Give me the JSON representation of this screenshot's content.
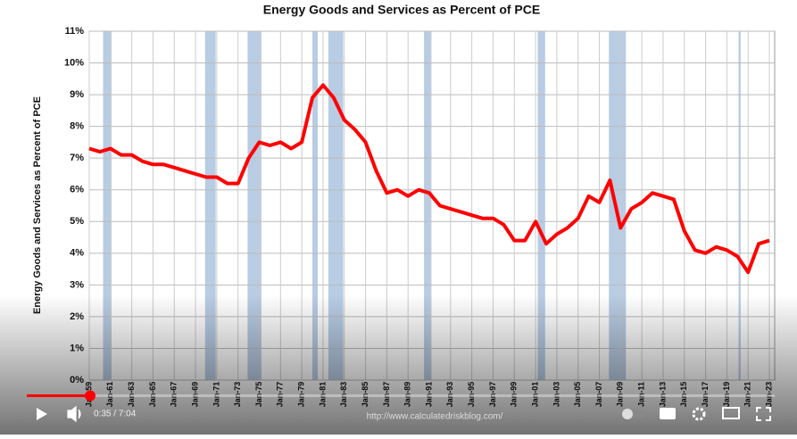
{
  "chart_data": {
    "type": "line",
    "title": "Energy Goods and Services as Percent of PCE",
    "y_label": "Energy Goods and Services as Percent of PCE",
    "source": "http://www.calculatedriskblog.com/",
    "color": "#ff0000",
    "recession_color": "#b8cce4",
    "grid": true,
    "x": [
      1959,
      1960,
      1961,
      1962,
      1963,
      1964,
      1965,
      1966,
      1967,
      1968,
      1969,
      1970,
      1971,
      1972,
      1973,
      1974,
      1975,
      1976,
      1977,
      1978,
      1979,
      1980,
      1981,
      1982,
      1983,
      1984,
      1985,
      1986,
      1987,
      1988,
      1989,
      1990,
      1991,
      1992,
      1993,
      1994,
      1995,
      1996,
      1997,
      1998,
      1999,
      2000,
      2001,
      2002,
      2003,
      2004,
      2005,
      2006,
      2007,
      2008,
      2009,
      2010,
      2011,
      2012,
      2013,
      2014,
      2015,
      2016,
      2017,
      2018,
      2019,
      2020,
      2021,
      2022,
      2023
    ],
    "values": [
      7.3,
      7.2,
      7.3,
      7.1,
      7.1,
      6.9,
      6.8,
      6.8,
      6.7,
      6.6,
      6.5,
      6.4,
      6.4,
      6.2,
      6.2,
      7.0,
      7.5,
      7.4,
      7.5,
      7.3,
      7.5,
      8.9,
      9.3,
      8.9,
      8.2,
      7.9,
      7.5,
      6.6,
      5.9,
      6.0,
      5.8,
      6.0,
      5.9,
      5.5,
      5.4,
      5.3,
      5.2,
      5.1,
      5.1,
      4.9,
      4.4,
      4.4,
      5.0,
      4.3,
      4.6,
      4.8,
      5.1,
      5.8,
      5.6,
      6.3,
      4.8,
      5.4,
      5.6,
      5.9,
      5.8,
      5.7,
      4.7,
      4.1,
      4.0,
      4.2,
      4.1,
      3.9,
      3.4,
      4.3,
      4.4
    ],
    "recessions": [
      [
        1960.3,
        1961.1
      ],
      [
        1969.9,
        1970.9
      ],
      [
        1973.9,
        1975.2
      ],
      [
        1980.0,
        1980.5
      ],
      [
        1981.5,
        1982.9
      ],
      [
        1990.5,
        1991.2
      ],
      [
        2001.2,
        2001.9
      ],
      [
        2007.9,
        2009.5
      ],
      [
        2020.1,
        2020.3
      ]
    ],
    "xlim": [
      1959,
      2023.5
    ],
    "ylim": [
      0,
      11
    ],
    "xticks": [
      {
        "value": 1959,
        "label": "Jan-59"
      },
      {
        "value": 1961,
        "label": "Jan-61"
      },
      {
        "value": 1963,
        "label": "Jan-63"
      },
      {
        "value": 1965,
        "label": "Jan-65"
      },
      {
        "value": 1967,
        "label": "Jan-67"
      },
      {
        "value": 1969,
        "label": "Jan-69"
      },
      {
        "value": 1971,
        "label": "Jan-71"
      },
      {
        "value": 1973,
        "label": "Jan-73"
      },
      {
        "value": 1975,
        "label": "Jan-75"
      },
      {
        "value": 1977,
        "label": "Jan-77"
      },
      {
        "value": 1979,
        "label": "Jan-79"
      },
      {
        "value": 1981,
        "label": "Jan-81"
      },
      {
        "value": 1983,
        "label": "Jan-83"
      },
      {
        "value": 1985,
        "label": "Jan-85"
      },
      {
        "value": 1987,
        "label": "Jan-87"
      },
      {
        "value": 1989,
        "label": "Jan-89"
      },
      {
        "value": 1991,
        "label": "Jan-91"
      },
      {
        "value": 1993,
        "label": "Jan-93"
      },
      {
        "value": 1995,
        "label": "Jan-95"
      },
      {
        "value": 1997,
        "label": "Jan-97"
      },
      {
        "value": 1999,
        "label": "Jan-99"
      },
      {
        "value": 2001,
        "label": "Jan-01"
      },
      {
        "value": 2003,
        "label": "Jan-03"
      },
      {
        "value": 2005,
        "label": "Jan-05"
      },
      {
        "value": 2007,
        "label": "Jan-07"
      },
      {
        "value": 2009,
        "label": "Jan-09"
      },
      {
        "value": 2011,
        "label": "Jan-11"
      },
      {
        "value": 2013,
        "label": "Jan-13"
      },
      {
        "value": 2015,
        "label": "Jan-15"
      },
      {
        "value": 2017,
        "label": "Jan-17"
      },
      {
        "value": 2019,
        "label": "Jan-19"
      },
      {
        "value": 2021,
        "label": "Jan-21"
      },
      {
        "value": 2023,
        "label": "Jan-23"
      }
    ],
    "yticks": [
      {
        "value": 0,
        "label": "0%"
      },
      {
        "value": 1,
        "label": "1%"
      },
      {
        "value": 2,
        "label": "2%"
      },
      {
        "value": 3,
        "label": "3%"
      },
      {
        "value": 4,
        "label": "4%"
      },
      {
        "value": 5,
        "label": "5%"
      },
      {
        "value": 6,
        "label": "6%"
      },
      {
        "value": 7,
        "label": "7%"
      },
      {
        "value": 8,
        "label": "8%"
      },
      {
        "value": 9,
        "label": "9%"
      },
      {
        "value": 10,
        "label": "10%"
      },
      {
        "value": 11,
        "label": "11%"
      }
    ]
  },
  "player": {
    "time": "0:35 / 7:04"
  }
}
